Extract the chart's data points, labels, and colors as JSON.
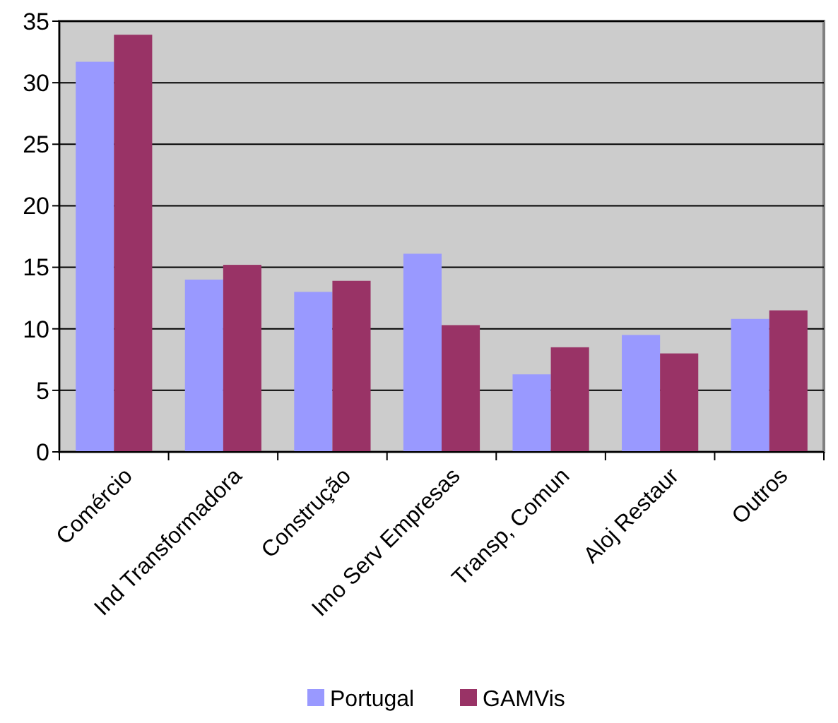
{
  "chart_data": {
    "type": "bar",
    "categories": [
      "Comércio",
      "Ind Transformadora",
      "Construção",
      "Imo Serv Empresas",
      "Transp, Comun",
      "Aloj Restaur",
      "Outros"
    ],
    "series": [
      {
        "name": "Portugal",
        "color": "#9999ff",
        "values": [
          31.7,
          14.0,
          13.0,
          16.1,
          6.3,
          9.5,
          10.8
        ]
      },
      {
        "name": "GAMVis",
        "color": "#993366",
        "values": [
          33.9,
          15.2,
          13.9,
          10.3,
          8.5,
          8.0,
          11.5
        ]
      }
    ],
    "ylim": [
      0,
      35
    ],
    "yticks": [
      0,
      5,
      10,
      15,
      20,
      25,
      30,
      35
    ],
    "grid": "y",
    "legend": "bottom"
  }
}
